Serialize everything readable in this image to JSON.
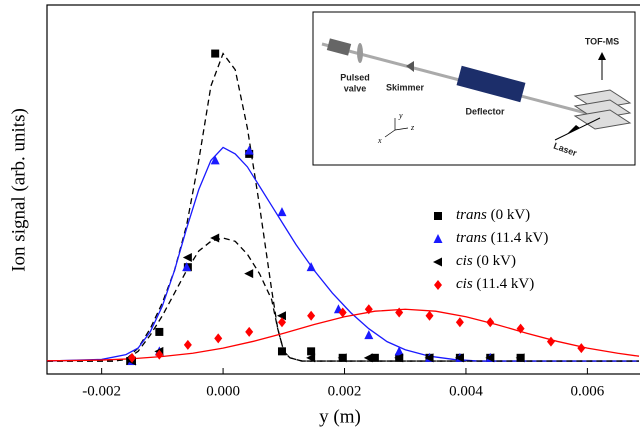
{
  "chart_data": {
    "type": "scatter",
    "xlabel": "y (m)",
    "ylabel": "Ion signal (arb. units)",
    "xlim": [
      -0.0029,
      0.00685
    ],
    "ylim": [
      -0.04,
      1.1
    ],
    "xticks": [
      -0.002,
      {
        "value": 0,
        "label": "0.000"
      },
      0.002,
      0.004,
      0.006
    ],
    "legend": "right",
    "series": [
      {
        "name": "trans (0 kV)",
        "color": "#000000",
        "marker": "square",
        "x": [
          -0.00153,
          -0.00105,
          -0.00058,
          -0.00013,
          0.00043,
          0.00097,
          0.00145,
          0.00197,
          0.0025,
          0.0029,
          0.0034,
          0.0039,
          0.0044,
          0.0049
        ],
        "values": [
          0,
          0.09,
          0.29,
          0.95,
          0.64,
          0.03,
          0.03,
          0.01,
          0.01,
          0.01,
          0.01,
          0.01,
          0.01,
          0.01
        ],
        "fit": {
          "dash": true,
          "x": [
            -0.0029,
            -0.0018,
            -0.0016,
            -0.0014,
            -0.0012,
            -0.001,
            -0.0008,
            -0.0006,
            -0.0004,
            -0.0002,
            0,
            0.0002,
            0.0004,
            0.0006,
            0.0008,
            0.0009,
            0.001,
            0.0011,
            0.0013,
            0.00685
          ],
          "values": [
            0,
            0,
            0.005,
            0.04,
            0.1,
            0.18,
            0.28,
            0.42,
            0.62,
            0.85,
            0.95,
            0.9,
            0.72,
            0.48,
            0.22,
            0.1,
            0.03,
            0.01,
            0,
            0
          ]
        }
      },
      {
        "name": "trans (11.4 kV)",
        "color": "#1a1aff",
        "marker": "triangle-up",
        "x": [
          -0.0015,
          -0.00105,
          -0.0006,
          -0.00013,
          0.00043,
          0.00097,
          0.00145,
          0.0019,
          0.0024,
          0.0029,
          0.0034,
          0.0039,
          0.0044
        ],
        "values": [
          0,
          0.03,
          0.29,
          0.62,
          0.65,
          0.46,
          0.29,
          0.16,
          0.08,
          0.03,
          0.01,
          0.01,
          0.01
        ],
        "fit": {
          "dash": false,
          "x": [
            -0.0029,
            -0.002,
            -0.0016,
            -0.0014,
            -0.0012,
            -0.001,
            -0.0008,
            -0.0006,
            -0.0004,
            -0.0002,
            0,
            0.0002,
            0.0004,
            0.0006,
            0.0008,
            0.001,
            0.0012,
            0.0015,
            0.0018,
            0.0021,
            0.0024,
            0.0027,
            0.003,
            0.0034,
            0.0038,
            0.0042,
            0.00685
          ],
          "values": [
            0,
            0.005,
            0.02,
            0.04,
            0.09,
            0.17,
            0.28,
            0.41,
            0.53,
            0.62,
            0.66,
            0.64,
            0.6,
            0.54,
            0.48,
            0.42,
            0.36,
            0.28,
            0.21,
            0.15,
            0.1,
            0.06,
            0.035,
            0.015,
            0.005,
            0,
            0
          ]
        }
      },
      {
        "name": "cis (0 kV)",
        "color": "#000000",
        "marker": "triangle-left",
        "x": [
          -0.0015,
          -0.00105,
          -0.00058,
          -0.00013,
          0.00043,
          0.00097,
          0.00145,
          0.00197,
          0.0024,
          0.0029,
          0.0034,
          0.0039,
          0.0044,
          0.0049
        ],
        "values": [
          0,
          0.03,
          0.32,
          0.38,
          0.27,
          0.14,
          0.01,
          0.01,
          0.01,
          0.01,
          0.01,
          0.01,
          0.01,
          0.01
        ],
        "fit": {
          "dash": true,
          "x": [
            -0.0029,
            -0.0018,
            -0.0016,
            -0.0014,
            -0.0012,
            -0.001,
            -0.0008,
            -0.0006,
            -0.0004,
            -0.0002,
            0,
            0.0002,
            0.0004,
            0.0006,
            0.0008,
            0.0009,
            0.001,
            0.0011,
            0.0013,
            0.00685
          ],
          "values": [
            0,
            0,
            0.005,
            0.03,
            0.08,
            0.14,
            0.21,
            0.28,
            0.34,
            0.37,
            0.38,
            0.37,
            0.33,
            0.27,
            0.19,
            0.1,
            0.03,
            0.01,
            0,
            0
          ]
        }
      },
      {
        "name": "cis (11.4 kV)",
        "color": "#ff0000",
        "marker": "diamond",
        "x": [
          -0.0015,
          -0.00105,
          -0.00058,
          -8e-05,
          0.00043,
          0.00097,
          0.00145,
          0.00197,
          0.0024,
          0.0029,
          0.0034,
          0.0039,
          0.0044,
          0.0049,
          0.0054,
          0.0059
        ],
        "values": [
          0.01,
          0.02,
          0.05,
          0.07,
          0.09,
          0.12,
          0.14,
          0.15,
          0.16,
          0.15,
          0.14,
          0.12,
          0.12,
          0.1,
          0.06,
          0.04
        ],
        "fit": {
          "dash": false,
          "x": [
            -0.0029,
            -0.0025,
            -0.002,
            -0.0015,
            -0.001,
            -0.0005,
            0,
            0.0005,
            0.001,
            0.0015,
            0.002,
            0.0025,
            0.003,
            0.0035,
            0.004,
            0.0045,
            0.005,
            0.0055,
            0.006,
            0.0065,
            0.00685
          ],
          "values": [
            0.001,
            0.0015,
            0.003,
            0.007,
            0.014,
            0.024,
            0.04,
            0.061,
            0.086,
            0.113,
            0.137,
            0.154,
            0.16,
            0.154,
            0.137,
            0.113,
            0.086,
            0.061,
            0.04,
            0.024,
            0.015
          ]
        }
      }
    ]
  },
  "inset": {
    "labels": [
      "TOF-MS",
      "Pulsed",
      "valve",
      "Skimmer",
      "Deflector",
      "Laser",
      "y",
      "x",
      "z"
    ]
  }
}
